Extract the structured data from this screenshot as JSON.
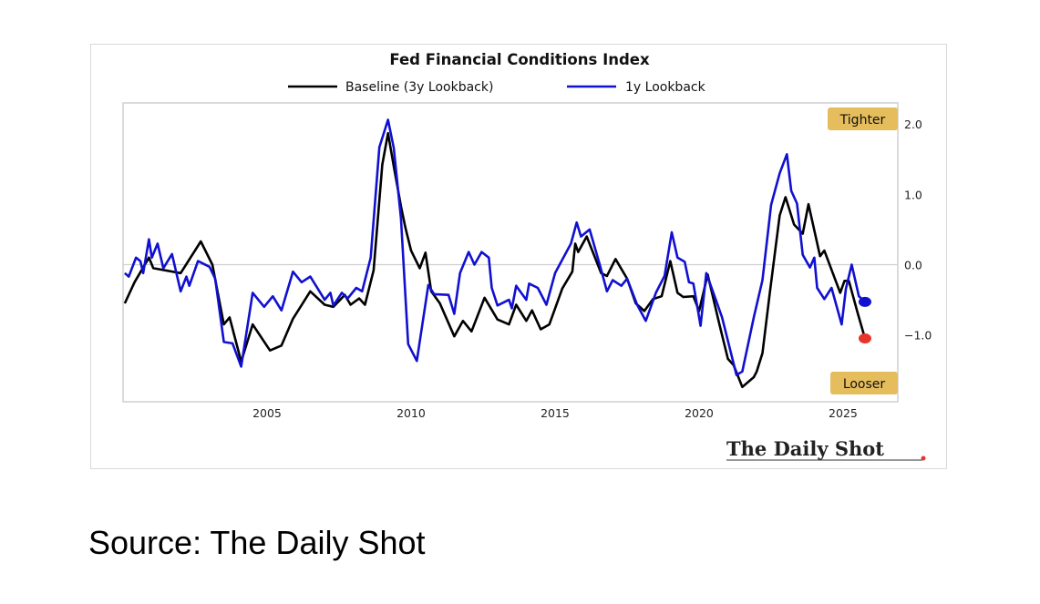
{
  "source_caption": "Source: The Daily Shot",
  "logo_text": "The Daily Shot",
  "chart_data": {
    "type": "line",
    "title": "Fed Financial Conditions Index",
    "xlabel": "",
    "ylabel": "",
    "xlim": [
      2000,
      2026.9
    ],
    "ylim": [
      -1.95,
      2.3
    ],
    "x_ticks": [
      2005,
      2010,
      2015,
      2020,
      2025
    ],
    "x_tick_labels": [
      "2005",
      "2010",
      "2015",
      "2020",
      "2025"
    ],
    "y_ticks": [
      2.0,
      1.0,
      0.0,
      -1.0
    ],
    "y_tick_labels": [
      "2.0",
      "1.0",
      "0.0",
      "−1.0"
    ],
    "y_axis_side": "right",
    "grid": "zero line only",
    "legend_placement": "top-center",
    "annotations": [
      {
        "text": "Tighter",
        "position": "top-right",
        "color": "#e5bd5c"
      },
      {
        "text": "Looser",
        "position": "bottom-right",
        "color": "#e5bd5c"
      }
    ],
    "series": [
      {
        "name": "Baseline (3y Lookback)",
        "color": "#000000",
        "end_marker_color": "#e8352a",
        "points": [
          [
            2000.06,
            -0.55
          ],
          [
            2000.4,
            -0.25
          ],
          [
            2000.9,
            0.1
          ],
          [
            2001.05,
            -0.05
          ],
          [
            2002.0,
            -0.12
          ],
          [
            2002.7,
            0.33
          ],
          [
            2003.1,
            0.0
          ],
          [
            2003.5,
            -0.85
          ],
          [
            2003.7,
            -0.75
          ],
          [
            2004.1,
            -1.38
          ],
          [
            2004.5,
            -0.85
          ],
          [
            2005.1,
            -1.22
          ],
          [
            2005.5,
            -1.15
          ],
          [
            2005.9,
            -0.77
          ],
          [
            2006.5,
            -0.38
          ],
          [
            2007.0,
            -0.57
          ],
          [
            2007.3,
            -0.6
          ],
          [
            2007.7,
            -0.43
          ],
          [
            2007.9,
            -0.57
          ],
          [
            2008.2,
            -0.48
          ],
          [
            2008.4,
            -0.57
          ],
          [
            2008.7,
            -0.08
          ],
          [
            2009.0,
            1.42
          ],
          [
            2009.2,
            1.87
          ],
          [
            2009.4,
            1.4
          ],
          [
            2009.65,
            0.83
          ],
          [
            2009.8,
            0.53
          ],
          [
            2010.0,
            0.2
          ],
          [
            2010.3,
            -0.05
          ],
          [
            2010.5,
            0.17
          ],
          [
            2010.7,
            -0.38
          ],
          [
            2011.0,
            -0.55
          ],
          [
            2011.5,
            -1.02
          ],
          [
            2011.8,
            -0.8
          ],
          [
            2012.1,
            -0.95
          ],
          [
            2012.55,
            -0.47
          ],
          [
            2013.0,
            -0.78
          ],
          [
            2013.4,
            -0.85
          ],
          [
            2013.65,
            -0.57
          ],
          [
            2014.0,
            -0.8
          ],
          [
            2014.2,
            -0.65
          ],
          [
            2014.5,
            -0.92
          ],
          [
            2014.8,
            -0.85
          ],
          [
            2015.25,
            -0.34
          ],
          [
            2015.6,
            -0.1
          ],
          [
            2015.7,
            0.3
          ],
          [
            2015.8,
            0.18
          ],
          [
            2016.1,
            0.4
          ],
          [
            2016.6,
            -0.12
          ],
          [
            2016.8,
            -0.16
          ],
          [
            2017.1,
            0.08
          ],
          [
            2017.5,
            -0.2
          ],
          [
            2017.8,
            -0.55
          ],
          [
            2018.1,
            -0.66
          ],
          [
            2018.4,
            -0.49
          ],
          [
            2018.7,
            -0.45
          ],
          [
            2019.0,
            0.05
          ],
          [
            2019.25,
            -0.4
          ],
          [
            2019.45,
            -0.46
          ],
          [
            2019.8,
            -0.45
          ],
          [
            2020.0,
            -0.66
          ],
          [
            2020.3,
            -0.14
          ],
          [
            2020.7,
            -0.84
          ],
          [
            2021.0,
            -1.34
          ],
          [
            2021.2,
            -1.43
          ],
          [
            2021.5,
            -1.74
          ],
          [
            2021.9,
            -1.6
          ],
          [
            2022.0,
            -1.52
          ],
          [
            2022.2,
            -1.26
          ],
          [
            2022.45,
            -0.42
          ],
          [
            2022.8,
            0.7
          ],
          [
            2023.0,
            0.96
          ],
          [
            2023.3,
            0.57
          ],
          [
            2023.6,
            0.44
          ],
          [
            2023.8,
            0.86
          ],
          [
            2024.2,
            0.12
          ],
          [
            2024.35,
            0.2
          ],
          [
            2024.9,
            -0.4
          ],
          [
            2025.05,
            -0.23
          ],
          [
            2025.2,
            -0.23
          ],
          [
            2025.5,
            -0.68
          ],
          [
            2025.76,
            -1.05
          ]
        ]
      },
      {
        "name": "1y Lookback",
        "color": "#1010d0",
        "end_marker_color": "#1010d0",
        "points": [
          [
            2000.06,
            -0.12
          ],
          [
            2000.2,
            -0.17
          ],
          [
            2000.45,
            0.1
          ],
          [
            2000.6,
            0.05
          ],
          [
            2000.7,
            -0.12
          ],
          [
            2000.9,
            0.36
          ],
          [
            2001.0,
            0.1
          ],
          [
            2001.2,
            0.3
          ],
          [
            2001.4,
            -0.05
          ],
          [
            2001.7,
            0.15
          ],
          [
            2002.0,
            -0.38
          ],
          [
            2002.2,
            -0.17
          ],
          [
            2002.3,
            -0.3
          ],
          [
            2002.6,
            0.05
          ],
          [
            2003.0,
            -0.03
          ],
          [
            2003.2,
            -0.2
          ],
          [
            2003.5,
            -1.1
          ],
          [
            2003.8,
            -1.12
          ],
          [
            2004.1,
            -1.45
          ],
          [
            2004.5,
            -0.4
          ],
          [
            2004.9,
            -0.6
          ],
          [
            2005.2,
            -0.45
          ],
          [
            2005.5,
            -0.65
          ],
          [
            2005.9,
            -0.1
          ],
          [
            2006.2,
            -0.25
          ],
          [
            2006.5,
            -0.17
          ],
          [
            2007.0,
            -0.5
          ],
          [
            2007.2,
            -0.4
          ],
          [
            2007.3,
            -0.58
          ],
          [
            2007.6,
            -0.4
          ],
          [
            2007.8,
            -0.48
          ],
          [
            2008.1,
            -0.33
          ],
          [
            2008.3,
            -0.38
          ],
          [
            2008.6,
            0.1
          ],
          [
            2008.9,
            1.67
          ],
          [
            2009.2,
            2.06
          ],
          [
            2009.4,
            1.66
          ],
          [
            2009.65,
            0.66
          ],
          [
            2009.9,
            -1.13
          ],
          [
            2010.2,
            -1.37
          ],
          [
            2010.6,
            -0.29
          ],
          [
            2010.8,
            -0.42
          ],
          [
            2011.3,
            -0.43
          ],
          [
            2011.5,
            -0.7
          ],
          [
            2011.7,
            -0.12
          ],
          [
            2012.0,
            0.18
          ],
          [
            2012.2,
            0.0
          ],
          [
            2012.45,
            0.18
          ],
          [
            2012.7,
            0.1
          ],
          [
            2012.8,
            -0.33
          ],
          [
            2013.0,
            -0.58
          ],
          [
            2013.4,
            -0.5
          ],
          [
            2013.5,
            -0.62
          ],
          [
            2013.65,
            -0.3
          ],
          [
            2014.0,
            -0.5
          ],
          [
            2014.1,
            -0.27
          ],
          [
            2014.4,
            -0.33
          ],
          [
            2014.7,
            -0.57
          ],
          [
            2015.0,
            -0.12
          ],
          [
            2015.55,
            0.3
          ],
          [
            2015.75,
            0.6
          ],
          [
            2015.9,
            0.4
          ],
          [
            2016.2,
            0.5
          ],
          [
            2016.55,
            0.0
          ],
          [
            2016.8,
            -0.38
          ],
          [
            2017.0,
            -0.22
          ],
          [
            2017.3,
            -0.3
          ],
          [
            2017.5,
            -0.2
          ],
          [
            2017.85,
            -0.57
          ],
          [
            2018.15,
            -0.8
          ],
          [
            2018.5,
            -0.4
          ],
          [
            2018.8,
            -0.16
          ],
          [
            2019.05,
            0.46
          ],
          [
            2019.25,
            0.1
          ],
          [
            2019.5,
            0.04
          ],
          [
            2019.65,
            -0.25
          ],
          [
            2019.8,
            -0.27
          ],
          [
            2020.05,
            -0.87
          ],
          [
            2020.25,
            -0.12
          ],
          [
            2020.6,
            -0.52
          ],
          [
            2020.8,
            -0.75
          ],
          [
            2021.3,
            -1.57
          ],
          [
            2021.5,
            -1.52
          ],
          [
            2021.9,
            -0.75
          ],
          [
            2022.2,
            -0.22
          ],
          [
            2022.5,
            0.85
          ],
          [
            2022.8,
            1.3
          ],
          [
            2023.05,
            1.57
          ],
          [
            2023.2,
            1.05
          ],
          [
            2023.4,
            0.87
          ],
          [
            2023.6,
            0.14
          ],
          [
            2023.85,
            -0.04
          ],
          [
            2024.0,
            0.1
          ],
          [
            2024.1,
            -0.33
          ],
          [
            2024.35,
            -0.49
          ],
          [
            2024.6,
            -0.33
          ],
          [
            2024.95,
            -0.85
          ],
          [
            2025.1,
            -0.34
          ],
          [
            2025.3,
            0.0
          ],
          [
            2025.55,
            -0.45
          ],
          [
            2025.76,
            -0.53
          ]
        ]
      }
    ]
  }
}
